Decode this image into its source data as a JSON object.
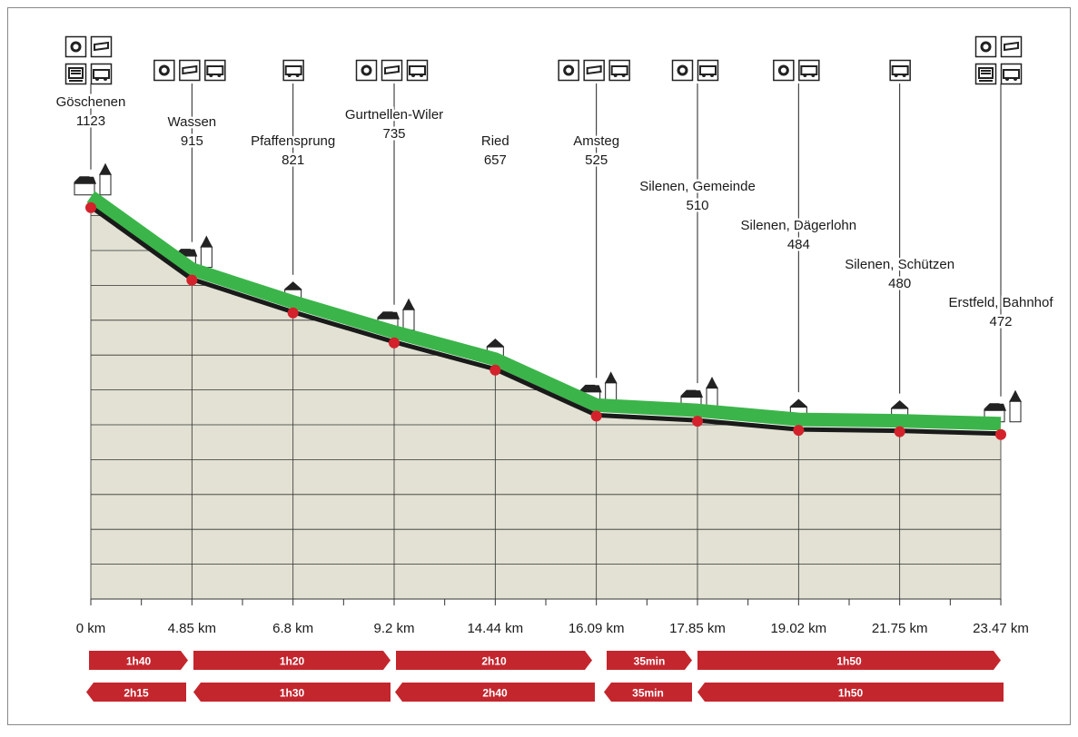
{
  "chart_data": {
    "type": "line",
    "categories": [
      "Göschenen",
      "Wassen",
      "Pfaffensprung",
      "Gurtnellen-Wiler",
      "Ried",
      "Amsteg",
      "Silenen, Gemeinde",
      "Silenen, Dägerlohn",
      "Silenen, Schützen",
      "Erstfeld, Bahnhof"
    ],
    "values": [
      1123,
      915,
      821,
      735,
      657,
      525,
      510,
      484,
      480,
      472
    ],
    "x_labels": [
      "0 km",
      "4.85 km",
      "6.8 km",
      "9.2 km",
      "14.44 km",
      "16.09 km",
      "17.85 km",
      "19.02 km",
      "21.75 km",
      "23.47 km"
    ],
    "forward_times": [
      "1h40",
      "1h20",
      "2h10",
      "35min",
      "1h50"
    ],
    "return_times": [
      "2h15",
      "1h30",
      "2h40",
      "35min",
      "1h50"
    ],
    "ylim": [
      0,
      1200
    ],
    "yticks": [
      0,
      100,
      200,
      300,
      400,
      500,
      600,
      700,
      800,
      900,
      1000,
      1100
    ],
    "grid": true,
    "color": "#1a1a1a",
    "band_color": "#3bb54a",
    "marker_color": "#d3222b",
    "area_color": "#e2e1d3",
    "time_color": "#c4262e"
  }
}
